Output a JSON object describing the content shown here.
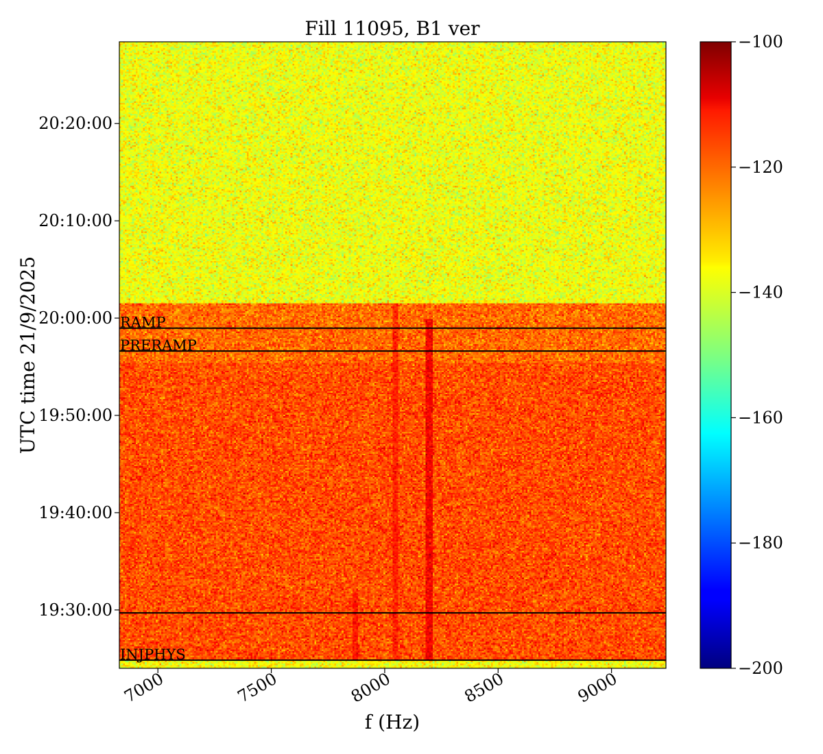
{
  "chart_data": {
    "type": "heatmap",
    "title": "Fill 11095, B1 ver",
    "xlabel": "f (Hz)",
    "ylabel": "UTC time 21/9/2025",
    "xlim": [
      6830,
      9240
    ],
    "x_ticks": [
      {
        "value": 7000,
        "label": "7000"
      },
      {
        "value": 7500,
        "label": "7500"
      },
      {
        "value": 8000,
        "label": "8000"
      },
      {
        "value": 8500,
        "label": "8500"
      },
      {
        "value": 9000,
        "label": "9000"
      }
    ],
    "ylim": [
      "19:24:00",
      "20:28:24"
    ],
    "y_ticks": [
      {
        "value": "19:30:00",
        "label": "19:30:00"
      },
      {
        "value": "19:40:00",
        "label": "19:40:00"
      },
      {
        "value": "19:50:00",
        "label": "19:50:00"
      },
      {
        "value": "20:00:00",
        "label": "20:00:00"
      },
      {
        "value": "20:10:00",
        "label": "20:10:00"
      },
      {
        "value": "20:20:00",
        "label": "20:20:00"
      }
    ],
    "colorbar": {
      "colormap": "jet",
      "range": [
        -200,
        -100
      ],
      "ticks": [
        {
          "value": -100,
          "label": "−100"
        },
        {
          "value": -120,
          "label": "−120"
        },
        {
          "value": -140,
          "label": "−140"
        },
        {
          "value": -160,
          "label": "−160"
        },
        {
          "value": -180,
          "label": "−180"
        },
        {
          "value": -200,
          "label": "−200"
        }
      ]
    },
    "regions": [
      {
        "t_start": "19:24:00",
        "t_end": "19:24:50",
        "level": -138
      },
      {
        "t_start": "19:24:50",
        "t_end": "19:55:20",
        "level": -120
      },
      {
        "t_start": "19:55:20",
        "t_end": "20:01:30",
        "level": -123
      },
      {
        "t_start": "20:01:30",
        "t_end": "20:28:24",
        "level": -139
      }
    ],
    "spectral_lines": [
      {
        "f": 8195,
        "t_start": "19:24:50",
        "t_end": "19:59:50",
        "level": -112
      },
      {
        "f": 7870,
        "t_start": "19:24:50",
        "t_end": "19:32:00",
        "level": -114
      },
      {
        "f": 8050,
        "t_start": "19:24:50",
        "t_end": "20:01:30",
        "level": -116
      }
    ],
    "events": [
      {
        "time": "19:58:58",
        "label": "RAMP"
      },
      {
        "time": "19:56:37",
        "label": "PRERAMP"
      },
      {
        "time": "19:29:42",
        "label": ""
      },
      {
        "time": "19:24:50",
        "label": "INJPHYS"
      }
    ]
  }
}
